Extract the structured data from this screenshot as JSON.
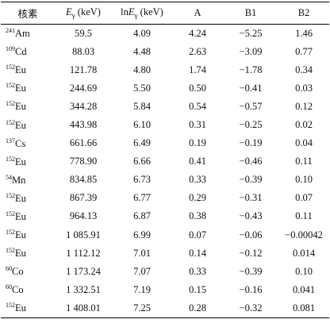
{
  "table": {
    "header": {
      "nuclide": "核素",
      "energy": {
        "symbol": "E",
        "sub": "γ",
        "unit": "(keV)"
      },
      "ln_energy": {
        "prefix": "ln",
        "symbol": "E",
        "sub": "γ",
        "unit": "(keV)"
      },
      "a": "A",
      "b1": "B1",
      "b2": "B2"
    },
    "rows": [
      [
        {
          "mass": "241",
          "symbol": "Am"
        },
        "59.5",
        "4.09",
        "4.24",
        "−5.25",
        "1.46"
      ],
      [
        {
          "mass": "109",
          "symbol": "Cd"
        },
        "88.03",
        "4.48",
        "2.63",
        "−3.09",
        "0.77"
      ],
      [
        {
          "mass": "152",
          "symbol": "Eu"
        },
        "121.78",
        "4.80",
        "1.74",
        "−1.78",
        "0.34"
      ],
      [
        {
          "mass": "152",
          "symbol": "Eu"
        },
        "244.69",
        "5.50",
        "0.50",
        "−0.41",
        "0.03"
      ],
      [
        {
          "mass": "152",
          "symbol": "Eu"
        },
        "344.28",
        "5.84",
        "0.54",
        "−0.57",
        "0.12"
      ],
      [
        {
          "mass": "152",
          "symbol": "Eu"
        },
        "443.98",
        "6.10",
        "0.31",
        "−0.25",
        "0.02"
      ],
      [
        {
          "mass": "137",
          "symbol": "Cs"
        },
        "661.66",
        "6.49",
        "0.19",
        "−0.19",
        "0.04"
      ],
      [
        {
          "mass": "152",
          "symbol": "Eu"
        },
        "778.90",
        "6.66",
        "0.41",
        "−0.46",
        "0.11"
      ],
      [
        {
          "mass": "54",
          "symbol": "Mn"
        },
        "834.85",
        "6.73",
        "0.33",
        "−0.39",
        "0.10"
      ],
      [
        {
          "mass": "152",
          "symbol": "Eu"
        },
        "867.39",
        "6.77",
        "0.29",
        "−0.31",
        "0.07"
      ],
      [
        {
          "mass": "152",
          "symbol": "Eu"
        },
        "964.13",
        "6.87",
        "0.38",
        "−0.43",
        "0.11"
      ],
      [
        {
          "mass": "152",
          "symbol": "Eu"
        },
        "1 085.91",
        "6.99",
        "0.07",
        "−0.06",
        "−0.00042"
      ],
      [
        {
          "mass": "152",
          "symbol": "Eu"
        },
        "1 112.12",
        "7.01",
        "0.14",
        "−0.12",
        "0.014"
      ],
      [
        {
          "mass": "60",
          "symbol": "Co"
        },
        "1 173.24",
        "7.07",
        "0.33",
        "−0.39",
        "0.10"
      ],
      [
        {
          "mass": "60",
          "symbol": "Co"
        },
        "1 332.51",
        "7.19",
        "0.15",
        "−0.16",
        "0.041"
      ],
      [
        {
          "mass": "152",
          "symbol": "Eu"
        },
        "1 408.01",
        "7.25",
        "0.28",
        "−0.32",
        "0.081"
      ]
    ]
  }
}
